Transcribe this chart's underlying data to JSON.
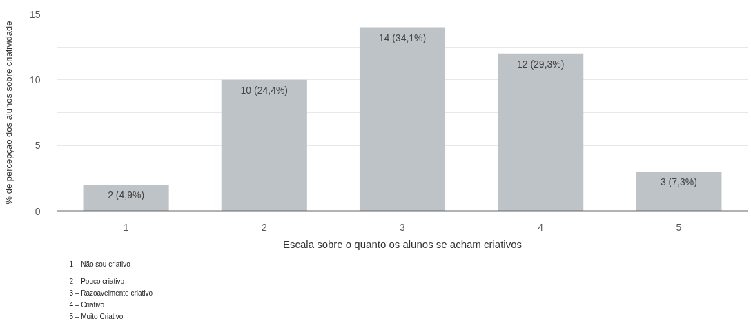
{
  "chart_data": {
    "type": "bar",
    "xlabel": "Escala sobre o quanto os alunos se acham criativos",
    "ylabel": "% de percepção dos alunos sobre criatividade",
    "categories": [
      "1",
      "2",
      "3",
      "4",
      "5"
    ],
    "values": [
      2,
      10,
      14,
      12,
      3
    ],
    "value_labels": [
      "2 (4,9%)",
      "10 (24,4%)",
      "14 (34,1%)",
      "12 (29,3%)",
      "3 (7,3%)"
    ],
    "color": "#bdc3c7",
    "ylim": [
      0,
      15
    ],
    "yticks": [
      0,
      {
        "value": 2.5,
        "label": null
      },
      5,
      {
        "value": 7.5,
        "label": null
      },
      10,
      {
        "value": 12.5,
        "label": null
      },
      15
    ],
    "grid": "y",
    "annotations": [
      "1 – Não sou criativo",
      "2 – Pouco criativo",
      "3 – Razoavelmente criativo",
      "4 – Criativo",
      "5 – Muito Criativo"
    ]
  }
}
